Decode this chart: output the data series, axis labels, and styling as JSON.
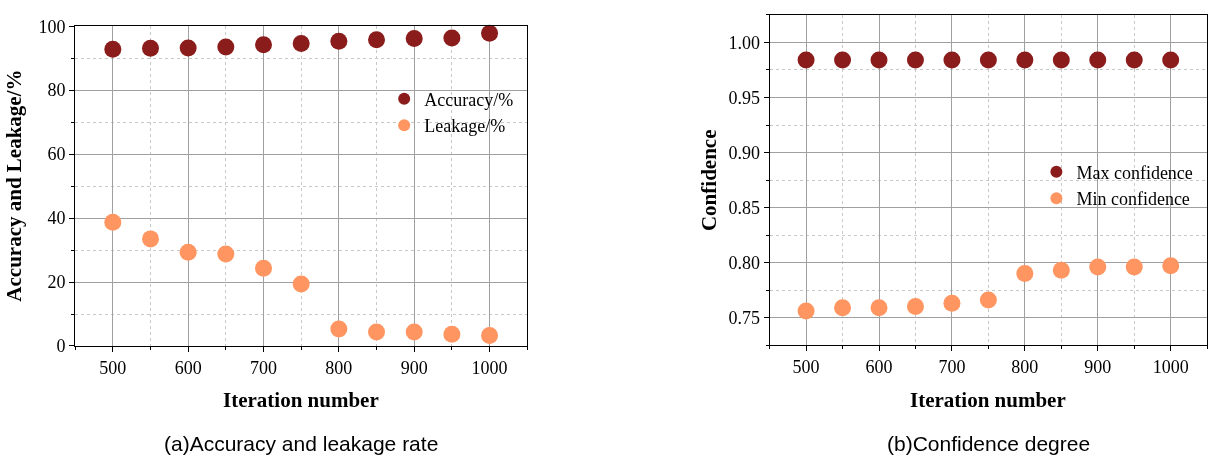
{
  "chart_data": [
    {
      "type": "scatter",
      "title": "(a)Accuracy and leakage rate",
      "xlabel": "Iteration number",
      "ylabel": "Accuracy and Leakage/%",
      "x": [
        500,
        550,
        600,
        650,
        700,
        750,
        800,
        850,
        900,
        950,
        1000
      ],
      "series": [
        {
          "name": "Accuracy/%",
          "color": "#8b1c1c",
          "values": [
            92.8,
            93.1,
            93.2,
            93.5,
            94.2,
            94.6,
            95.3,
            95.8,
            96.2,
            96.3,
            97.8
          ]
        },
        {
          "name": "Leakage/%",
          "color": "#ff9560",
          "values": [
            38.7,
            33.5,
            29.3,
            28.8,
            24.3,
            19.4,
            5.3,
            4.4,
            4.4,
            3.7,
            3.3
          ]
        }
      ],
      "xlim": [
        450,
        1050
      ],
      "xticks": [
        500,
        600,
        700,
        800,
        900,
        1000
      ],
      "ylim": [
        0,
        100
      ],
      "yticks": [
        0,
        20,
        40,
        60,
        80,
        100
      ],
      "grid": true,
      "legend": "top right",
      "marker": "circle"
    },
    {
      "type": "scatter",
      "title": "(b)Confidence degree",
      "xlabel": "Iteration number",
      "ylabel": "Confidence",
      "x": [
        500,
        550,
        600,
        650,
        700,
        750,
        800,
        850,
        900,
        950,
        1000
      ],
      "series": [
        {
          "name": "Max confidence",
          "color": "#8b1c1c",
          "values": [
            0.984,
            0.984,
            0.984,
            0.984,
            0.984,
            0.984,
            0.984,
            0.984,
            0.984,
            0.984,
            0.984
          ]
        },
        {
          "name": "Min confidence",
          "color": "#ff9560",
          "values": [
            0.756,
            0.759,
            0.759,
            0.76,
            0.763,
            0.766,
            0.79,
            0.793,
            0.796,
            0.796,
            0.797
          ]
        }
      ],
      "xlim": [
        450,
        1050
      ],
      "xticks": [
        500,
        600,
        700,
        800,
        900,
        1000
      ],
      "ylim": [
        0.725,
        1.025
      ],
      "yticks": [
        {
          "value": 0.75,
          "label": "0.75"
        },
        {
          "value": 0.8,
          "label": "0.80"
        },
        {
          "value": 0.85,
          "label": "0.85"
        },
        {
          "value": 0.9,
          "label": "0.90"
        },
        {
          "value": 0.95,
          "label": "0.95"
        },
        {
          "value": 1.0,
          "label": "1.00"
        }
      ],
      "grid": true,
      "legend": "right",
      "marker": "circle"
    }
  ]
}
